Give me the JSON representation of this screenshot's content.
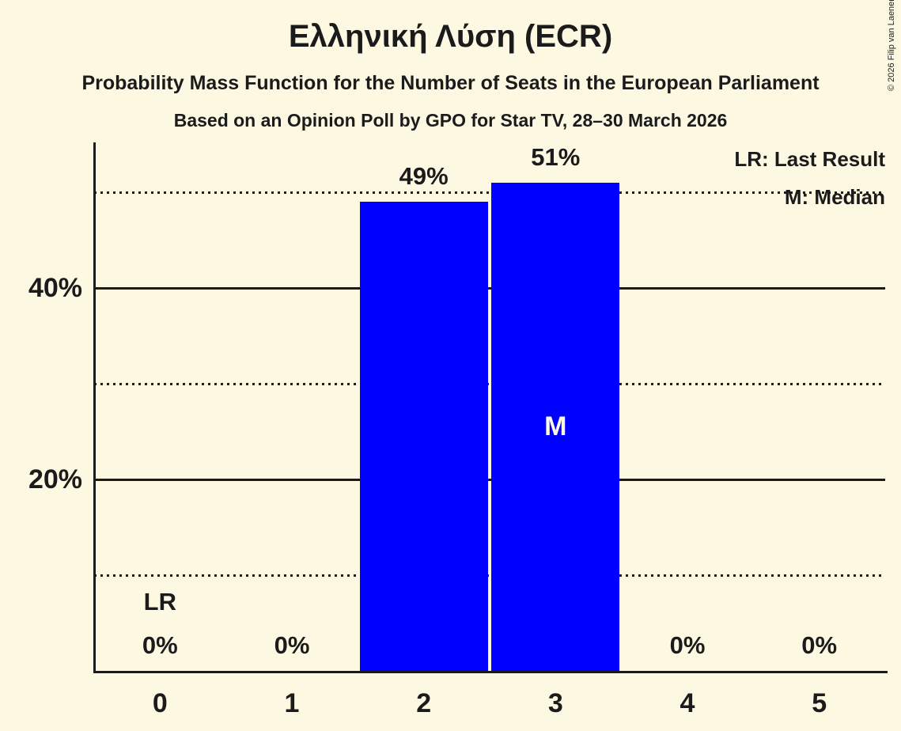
{
  "title": "Ελληνική Λύση (ECR)",
  "subtitle": "Probability Mass Function for the Number of Seats in the European Parliament",
  "poll_info": "Based on an Opinion Poll by GPO for Star TV, 28–30 March 2026",
  "copyright": "© 2026 Filip van Laenen",
  "legend": {
    "last_result": "LR: Last Result",
    "median": "M: Median"
  },
  "colors": {
    "background": "#FDF8E1",
    "bar": "#0000FF",
    "text": "#1B1B1B",
    "grid": "#1B1B1B"
  },
  "chart_data": {
    "type": "bar",
    "title": "Probability Mass Function for the Number of Seats in the European Parliament",
    "categories": [
      "0",
      "1",
      "2",
      "3",
      "4",
      "5"
    ],
    "values": [
      0,
      0,
      49,
      51,
      0,
      0
    ],
    "bar_labels": [
      "0%",
      "0%",
      "49%",
      "51%",
      "0%",
      "0%"
    ],
    "ylim": [
      0,
      55
    ],
    "yticks": [
      {
        "value": 20,
        "label": "20%"
      },
      {
        "value": 40,
        "label": "40%"
      }
    ],
    "gridlines": [
      {
        "value": 10,
        "style": "dotted"
      },
      {
        "value": 20,
        "style": "solid"
      },
      {
        "value": 30,
        "style": "dotted"
      },
      {
        "value": 40,
        "style": "solid"
      },
      {
        "value": 50,
        "style": "dotted"
      }
    ],
    "annotations": [
      {
        "category": "0",
        "label": "LR"
      },
      {
        "category": "3",
        "label": "M"
      }
    ],
    "legend_position": "top-right",
    "grid": "horizontal-only"
  }
}
